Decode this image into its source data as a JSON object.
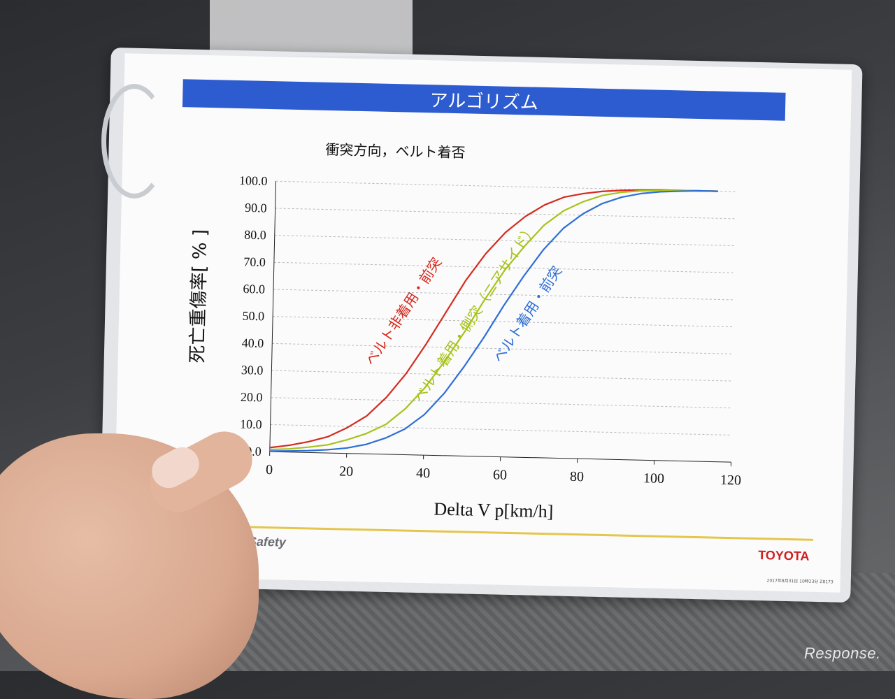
{
  "slide": {
    "banner_title": "アルゴリズム",
    "subtitle": "衝突方向，ベルト着否",
    "footer_left": "ted Safety",
    "footer_brand": "TOYOTA",
    "footer_small": "2017年8月31日 10時23分 Z8173"
  },
  "watermark": "Response.",
  "colors": {
    "banner": "#2d5bd0",
    "red": "#d42a1f",
    "yellow": "#a8c21a",
    "blue": "#2e6fd6",
    "grid": "#b8b8b8",
    "axis": "#222222"
  },
  "chart_data": {
    "type": "line",
    "title": "衝突方向，ベルト着否",
    "xlabel": "Delta V p[km/h]",
    "ylabel": "死亡重傷率[ % ]",
    "xlim": [
      0,
      120
    ],
    "ylim": [
      0,
      100
    ],
    "xticks": [
      "0",
      "20",
      "40",
      "60",
      "80",
      "100",
      "120"
    ],
    "yticks": [
      "0.0",
      "10.0",
      "20.0",
      "30.0",
      "40.0",
      "50.0",
      "60.0",
      "70.0",
      "80.0",
      "90.0",
      "100.0"
    ],
    "grid": "horizontal dashed",
    "x": [
      0,
      5,
      10,
      15,
      20,
      25,
      30,
      35,
      40,
      45,
      50,
      55,
      60,
      65,
      70,
      75,
      80,
      85,
      90,
      95,
      100,
      105,
      110,
      115
    ],
    "series": [
      {
        "name": "ベルト非着用・前突",
        "color": "#d42a1f",
        "values": [
          1.5,
          2.5,
          4,
          6,
          9.5,
          14,
          21,
          30,
          41,
          53,
          65,
          75,
          83,
          89,
          93.5,
          96.5,
          98,
          99,
          99.5,
          99.8,
          100,
          100,
          100,
          100
        ]
      },
      {
        "name": "ベルト着用・側突（ニアサイド）",
        "color": "#a8c21a",
        "values": [
          0.8,
          1.2,
          2,
          3,
          5,
          7.5,
          11,
          17,
          25,
          35,
          46,
          58,
          69,
          78,
          86,
          91.5,
          95,
          97.5,
          98.8,
          99.5,
          99.8,
          100,
          100,
          100
        ]
      },
      {
        "name": "ベルト着用・前突",
        "color": "#2e6fd6",
        "values": [
          0.2,
          0.4,
          0.7,
          1.2,
          2,
          3.5,
          6,
          9.5,
          15,
          23,
          33,
          44,
          56,
          67,
          77,
          85,
          90.5,
          94.5,
          97,
          98.5,
          99.3,
          99.7,
          100,
          100
        ]
      }
    ]
  }
}
